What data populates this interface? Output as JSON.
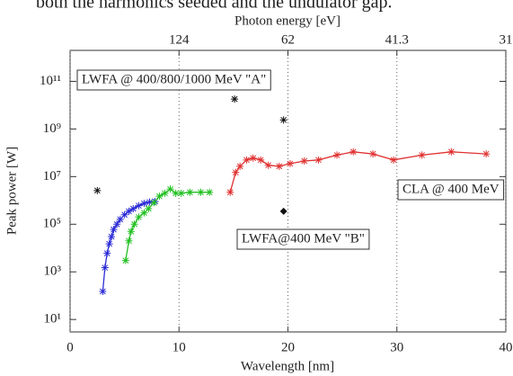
{
  "page_text": "both the harmonics seeded and the undulator gap.",
  "chart_data": {
    "type": "line",
    "xlabel": "Wavelength [nm]",
    "ylabel": "Peak power [W]",
    "x2label": "Photon energy [eV]",
    "xlim": [
      0,
      40
    ],
    "xticks": [
      0,
      10,
      20,
      30,
      40
    ],
    "x2ticks": [
      {
        "value": 10,
        "label": "124"
      },
      {
        "value": 20,
        "label": "62"
      },
      {
        "value": 30,
        "label": "41.3"
      },
      {
        "value": 40,
        "label": "31"
      }
    ],
    "ylim": [
      3,
      2000000000000
    ],
    "yscale": "log",
    "yticks": [
      {
        "value": 10,
        "label": "10¹"
      },
      {
        "value": 1000,
        "label": "10³"
      },
      {
        "value": 100000,
        "label": "10⁵"
      },
      {
        "value": 10000000,
        "label": "10⁷"
      },
      {
        "value": 1000000000,
        "label": "10⁹"
      },
      {
        "value": 100000000000,
        "label": "10¹¹"
      }
    ],
    "grid": "x",
    "series": [
      {
        "color": "#2b2bd6",
        "marker": "asterisk",
        "line": true,
        "x": [
          3.0,
          3.2,
          3.4,
          3.6,
          3.8,
          4.0,
          4.3,
          4.6,
          5.0,
          5.4,
          5.8,
          6.3,
          6.8,
          7.3,
          7.8
        ],
        "values": [
          150,
          1500,
          6000,
          15000,
          30000,
          60000,
          100000,
          160000,
          250000,
          350000,
          450000,
          600000,
          750000,
          850000,
          900000
        ]
      },
      {
        "color": "#22c022",
        "marker": "asterisk",
        "line": true,
        "x": [
          5.1,
          5.4,
          5.6,
          5.9,
          6.3,
          6.8,
          7.2,
          7.7,
          8.2,
          8.7,
          9.2,
          9.7,
          10.2,
          11.0,
          12.0,
          12.8
        ],
        "values": [
          3000,
          20000,
          50000,
          100000,
          200000,
          300000,
          450000,
          800000,
          1500000,
          2000000,
          3000000,
          2000000,
          2000000,
          2200000,
          2200000,
          2200000
        ]
      },
      {
        "color": "#e03030",
        "marker": "asterisk",
        "line": true,
        "x": [
          14.7,
          15.2,
          15.6,
          16.2,
          16.8,
          17.5,
          18.2,
          19.2,
          20.2,
          21.5,
          22.8,
          24.5,
          26.0,
          27.8,
          29.7,
          32.3,
          35.0,
          38.2
        ],
        "values": [
          2200000,
          15000000,
          27000000,
          50000000,
          60000000,
          50000000,
          30000000,
          27000000,
          35000000,
          45000000,
          50000000,
          80000000,
          110000000,
          90000000,
          50000000,
          80000000,
          110000000,
          90000000
        ]
      },
      {
        "color": "#111111",
        "marker": "asterisk",
        "line": false,
        "x": [
          2.5,
          15.1,
          19.6
        ],
        "values": [
          2600000,
          18000000000,
          2400000000
        ]
      },
      {
        "color": "#111111",
        "marker": "diamond",
        "line": false,
        "x": [
          19.6
        ],
        "values": [
          350000
        ]
      }
    ],
    "annotations": [
      "LWFA @ 400/800/1000 MeV \"A\"",
      "CLA @ 400 MeV",
      "LWFA@400 MeV \"B\""
    ]
  }
}
